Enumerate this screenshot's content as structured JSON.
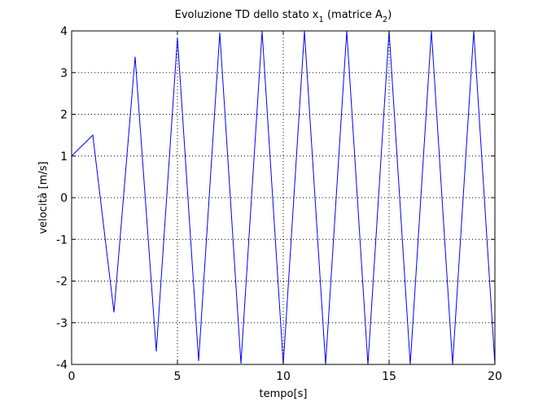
{
  "chart_data": {
    "type": "line",
    "title": {
      "prefix": "Evoluzione TD dello stato x",
      "prefix_sub": "1",
      "middle": " (matrice A",
      "middle_sub": "2",
      "suffix": ")"
    },
    "xlabel": "tempo[s]",
    "ylabel": "velocità [m/s]",
    "xlim": [
      0,
      20
    ],
    "ylim": [
      -4,
      4
    ],
    "x_ticks": [
      0,
      5,
      10,
      15,
      20
    ],
    "y_ticks": [
      -4,
      -3,
      -2,
      -1,
      0,
      1,
      2,
      3,
      4
    ],
    "grid": "dotted",
    "series": [
      {
        "color": "#0000ff",
        "x": [
          0,
          1,
          2,
          3,
          4,
          5,
          6,
          7,
          8,
          9,
          10,
          11,
          12,
          13,
          14,
          15,
          16,
          17,
          18,
          19,
          20
        ],
        "y": [
          1,
          1.5,
          -2.75,
          3.38,
          -3.69,
          3.84,
          -3.92,
          3.96,
          -3.98,
          3.99,
          -3.995,
          3.998,
          -3.999,
          4.0,
          -4.0,
          4.0,
          -4.0,
          4.0,
          -4.0,
          4.0,
          -4.0
        ]
      }
    ]
  }
}
